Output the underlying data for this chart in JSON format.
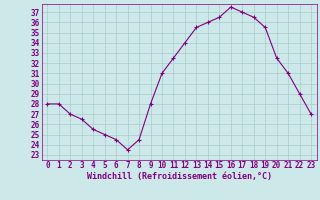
{
  "x": [
    0,
    1,
    2,
    3,
    4,
    5,
    6,
    7,
    8,
    9,
    10,
    11,
    12,
    13,
    14,
    15,
    16,
    17,
    18,
    19,
    20,
    21,
    22,
    23
  ],
  "y": [
    28,
    28,
    27,
    26.5,
    25.5,
    25,
    24.5,
    23.5,
    24.5,
    28,
    31,
    32.5,
    34,
    35.5,
    36,
    36.5,
    37.5,
    37,
    36.5,
    35.5,
    32.5,
    31,
    29,
    27
  ],
  "line_color": "#800080",
  "marker": "+",
  "marker_color": "#800080",
  "bg_color": "#cce8e8",
  "grid_color": "#aacccc",
  "xlabel": "Windchill (Refroidissement éolien,°C)",
  "xlabel_color": "#800080",
  "tick_color": "#800080",
  "yticks": [
    23,
    24,
    25,
    26,
    27,
    28,
    29,
    30,
    31,
    32,
    33,
    34,
    35,
    36,
    37
  ],
  "xticks": [
    0,
    1,
    2,
    3,
    4,
    5,
    6,
    7,
    8,
    9,
    10,
    11,
    12,
    13,
    14,
    15,
    16,
    17,
    18,
    19,
    20,
    21,
    22,
    23
  ],
  "ylim": [
    22.5,
    37.8
  ],
  "xlim": [
    -0.5,
    23.5
  ],
  "axis_fontsize": 5.5,
  "label_fontsize": 6.0
}
